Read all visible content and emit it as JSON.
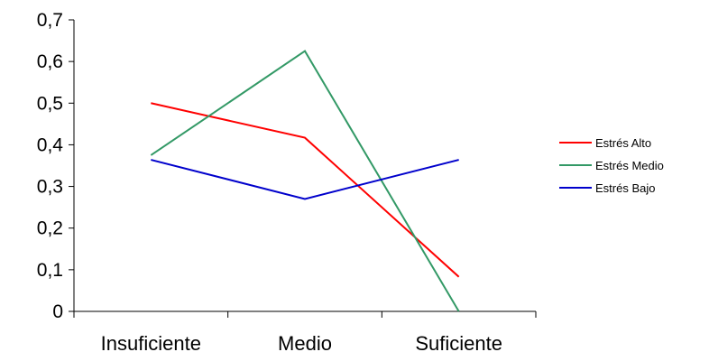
{
  "chart_data": {
    "type": "line",
    "categories": [
      "Insuficiente",
      "Medio",
      "Suficiente"
    ],
    "series": [
      {
        "name": "Estrés Alto",
        "color": "#ff0000",
        "values": [
          0.5,
          0.417,
          0.083
        ]
      },
      {
        "name": "Estrés Medio",
        "color": "#339966",
        "values": [
          0.375,
          0.625,
          0.0
        ]
      },
      {
        "name": "Estrés Bajo",
        "color": "#0000cc",
        "values": [
          0.364,
          0.27,
          0.364
        ]
      }
    ],
    "y_ticks": [
      "0",
      "0,1",
      "0,2",
      "0,3",
      "0,4",
      "0,5",
      "0,6",
      "0,7"
    ],
    "ylim": [
      0,
      0.7
    ],
    "grid": false,
    "legend_position": "right"
  }
}
